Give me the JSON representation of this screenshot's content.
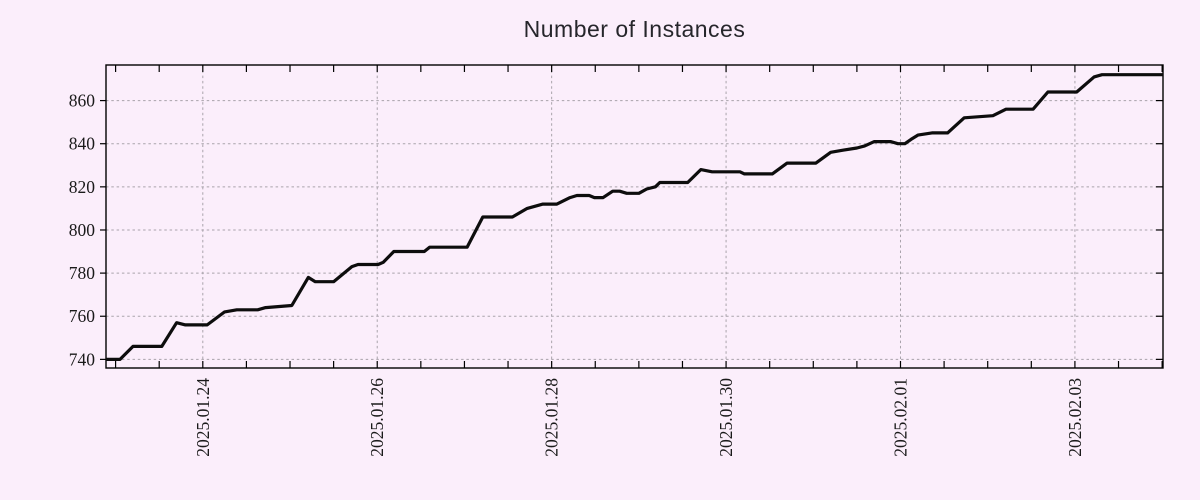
{
  "title": "Number of Instances",
  "colors": {
    "background": "#fbeefb",
    "line": "#0d0d0d",
    "grid": "#a9a3ab",
    "axis": "#000000",
    "text": "#1a1a1a",
    "title_text": "#26262b"
  },
  "chart_data": {
    "type": "line",
    "title": "Number of Instances",
    "xlabel": "",
    "ylabel": "",
    "x_unit": "days since 2025-01-23 00:00",
    "xlim": [
      -0.11,
      12.01
    ],
    "ylim": [
      736,
      876.5
    ],
    "grid": "dashed",
    "legend": "none",
    "x_ticks": [
      {
        "pos": 1,
        "label": "2025.01.24"
      },
      {
        "pos": 3,
        "label": "2025.01.26"
      },
      {
        "pos": 5,
        "label": "2025.01.28"
      },
      {
        "pos": 7,
        "label": "2025.01.30"
      },
      {
        "pos": 9,
        "label": "2025.02.01"
      },
      {
        "pos": 11,
        "label": "2025.02.03"
      }
    ],
    "x_minor_tick_step": 0.5,
    "y_ticks": [
      740,
      760,
      780,
      800,
      820,
      840,
      860
    ],
    "series": [
      {
        "name": "instances",
        "points": [
          [
            -0.11,
            740
          ],
          [
            0.05,
            740
          ],
          [
            0.2,
            746
          ],
          [
            0.53,
            746
          ],
          [
            0.7,
            757
          ],
          [
            0.8,
            756
          ],
          [
            1.05,
            756
          ],
          [
            1.25,
            762
          ],
          [
            1.39,
            763
          ],
          [
            1.63,
            763
          ],
          [
            1.72,
            764
          ],
          [
            2.02,
            765
          ],
          [
            2.21,
            778
          ],
          [
            2.29,
            776
          ],
          [
            2.5,
            776
          ],
          [
            2.56,
            778
          ],
          [
            2.71,
            783
          ],
          [
            2.78,
            784
          ],
          [
            3.01,
            784
          ],
          [
            3.07,
            785
          ],
          [
            3.19,
            790
          ],
          [
            3.54,
            790
          ],
          [
            3.6,
            792
          ],
          [
            4.03,
            792
          ],
          [
            4.21,
            806
          ],
          [
            4.55,
            806
          ],
          [
            4.72,
            810
          ],
          [
            4.9,
            812
          ],
          [
            5.06,
            812
          ],
          [
            5.21,
            815
          ],
          [
            5.29,
            816
          ],
          [
            5.43,
            816
          ],
          [
            5.49,
            815
          ],
          [
            5.59,
            815
          ],
          [
            5.7,
            818
          ],
          [
            5.78,
            818
          ],
          [
            5.86,
            817
          ],
          [
            6.0,
            817
          ],
          [
            6.09,
            819
          ],
          [
            6.19,
            820
          ],
          [
            6.24,
            822
          ],
          [
            6.56,
            822
          ],
          [
            6.71,
            828
          ],
          [
            6.84,
            827
          ],
          [
            7.16,
            827
          ],
          [
            7.21,
            826
          ],
          [
            7.53,
            826
          ],
          [
            7.7,
            831
          ],
          [
            8.03,
            831
          ],
          [
            8.2,
            836
          ],
          [
            8.34,
            837
          ],
          [
            8.5,
            838
          ],
          [
            8.59,
            839
          ],
          [
            8.7,
            841
          ],
          [
            8.89,
            841
          ],
          [
            8.97,
            840
          ],
          [
            9.05,
            840
          ],
          [
            9.12,
            842
          ],
          [
            9.2,
            844
          ],
          [
            9.36,
            845
          ],
          [
            9.54,
            845
          ],
          [
            9.73,
            852
          ],
          [
            10.06,
            853
          ],
          [
            10.21,
            856
          ],
          [
            10.52,
            856
          ],
          [
            10.69,
            864
          ],
          [
            11.02,
            864
          ],
          [
            11.22,
            871
          ],
          [
            11.31,
            872
          ],
          [
            12.01,
            872
          ]
        ]
      }
    ]
  }
}
